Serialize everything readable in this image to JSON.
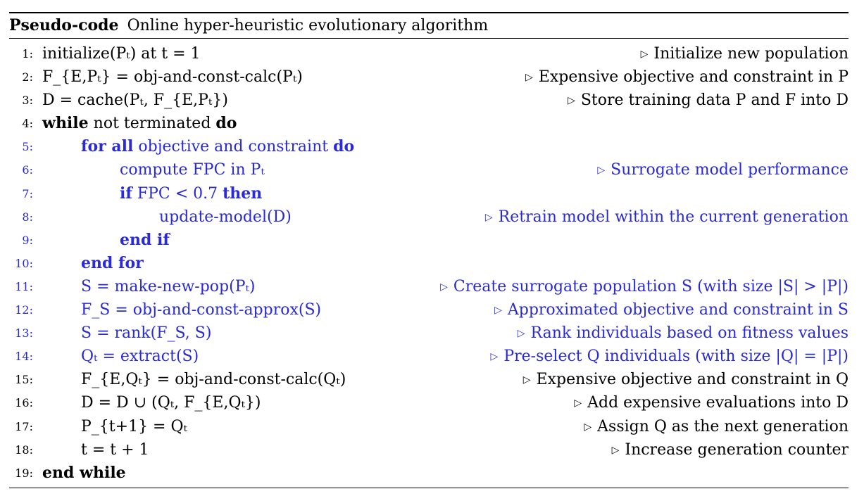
{
  "caption": {
    "label": "Pseudo-code",
    "title": "Online hyper-heuristic evolutionary algorithm"
  },
  "triangle_glyph": "▷",
  "colors": {
    "text": "#000000",
    "highlight_blue": "#2a2ad6"
  },
  "lines": [
    {
      "num": "1:",
      "code": "initialize(Pₜ) at t = 1",
      "comment": "Initialize new population"
    },
    {
      "num": "2:",
      "code": "F_{E,Pₜ} = obj-and-const-calc(Pₜ)",
      "comment": "Expensive objective and constraint in P"
    },
    {
      "num": "3:",
      "code": "D = cache(Pₜ, F_{E,Pₜ})",
      "comment": "Store training data P and F into D"
    },
    {
      "num": "4:",
      "kw1": "while",
      "code": "not terminated",
      "kw2": "do"
    },
    {
      "num": "5:",
      "kw1": "for all",
      "code": "objective and constraint",
      "kw2": "do"
    },
    {
      "num": "6:",
      "code": "compute FPC in Pₜ",
      "comment": "Surrogate model performance"
    },
    {
      "num": "7:",
      "kw1": "if",
      "code": "FPC < 0.7",
      "kw2": "then"
    },
    {
      "num": "8:",
      "code": "update-model(D)",
      "comment": "Retrain model within the current generation"
    },
    {
      "num": "9:",
      "kw1": "end if"
    },
    {
      "num": "10:",
      "kw1": "end for"
    },
    {
      "num": "11:",
      "code": "S = make-new-pop(Pₜ)",
      "comment": "Create surrogate population S (with size |S| > |P|)"
    },
    {
      "num": "12:",
      "code": "F_S = obj-and-const-approx(S)",
      "comment": "Approximated objective and constraint in S"
    },
    {
      "num": "13:",
      "code": "S = rank(F_S, S)",
      "comment": "Rank individuals based on fitness values"
    },
    {
      "num": "14:",
      "code": "Qₜ = extract(S)",
      "comment": "Pre-select Q individuals (with size |Q| = |P|)"
    },
    {
      "num": "15:",
      "code": "F_{E,Qₜ} = obj-and-const-calc(Qₜ)",
      "comment": "Expensive objective and constraint in Q"
    },
    {
      "num": "16:",
      "code": "D = D ∪ (Qₜ, F_{E,Qₜ})",
      "comment": "Add expensive evaluations into D"
    },
    {
      "num": "17:",
      "code": "P_{t+1} = Qₜ",
      "comment": "Assign Q as the next generation"
    },
    {
      "num": "18:",
      "code": "t = t + 1",
      "comment": "Increase generation counter"
    },
    {
      "num": "19:",
      "kw1": "end while"
    }
  ]
}
